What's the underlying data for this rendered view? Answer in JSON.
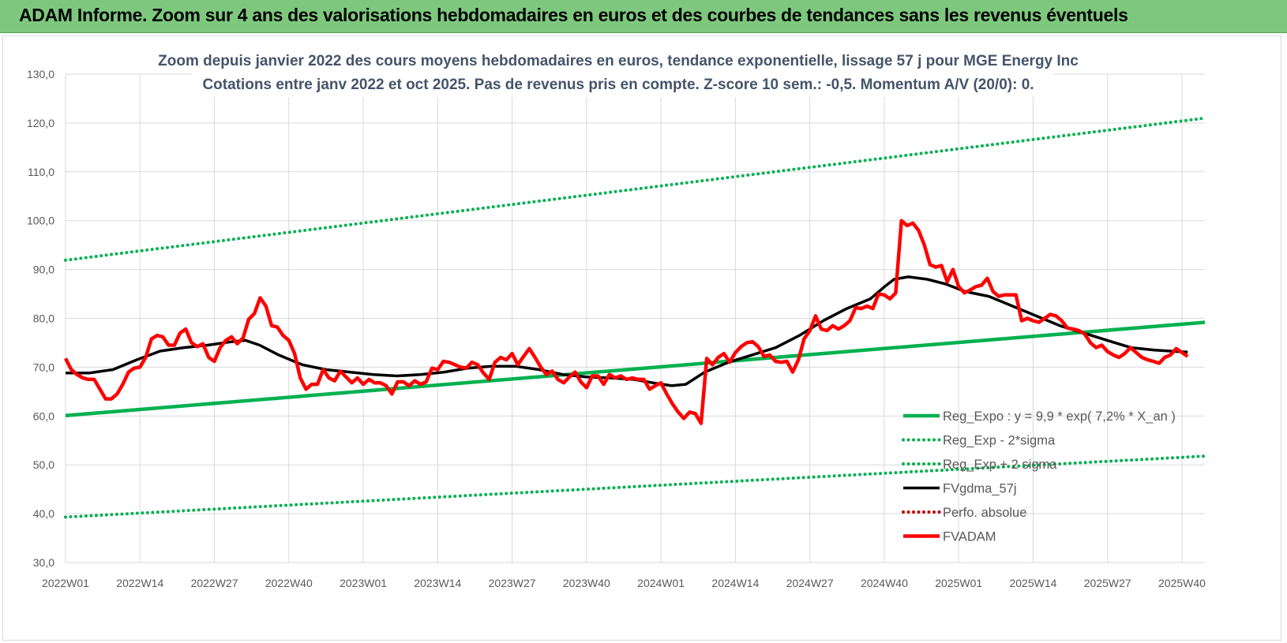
{
  "header": {
    "title": "ADAM Informe. Zoom sur 4 ans des valorisations hebdomadaires en euros et des courbes de tendances sans les revenus éventuels"
  },
  "colors": {
    "header_bg": "#7dc87d",
    "trend": "#00b050",
    "fvgdma": "#000000",
    "fvadam": "#ff0000",
    "perfo": "#c00000"
  },
  "chart_data": {
    "type": "line",
    "title_lines": [
      "Zoom depuis janvier 2022 des cours moyens hebdomadaires en euros, tendance exponentielle, lissage 57 j pour MGE Energy Inc",
      "Cotations entre janv 2022 et oct 2025. Pas de revenus pris en compte. Z-score 10 sem.: -0,5.  Momentum A/V (20/0): 0."
    ],
    "x_ticks": [
      "2022W01",
      "2022W14",
      "2022W27",
      "2022W40",
      "2023W01",
      "2023W14",
      "2023W27",
      "2023W40",
      "2024W01",
      "2024W14",
      "2024W27",
      "2024W40",
      "2025W01",
      "2025W14",
      "2025W27",
      "2025W40"
    ],
    "y_ticks": [
      "30,0",
      "40,0",
      "50,0",
      "60,0",
      "70,0",
      "80,0",
      "90,0",
      "100,0",
      "110,0",
      "120,0",
      "130,0"
    ],
    "ylim": [
      30,
      130
    ],
    "week_count": 200,
    "grid": true,
    "legend_position": "bottom-right",
    "series": [
      {
        "name": "Reg_Expo : y = 9,9 * exp( 7,2% *  X_an )",
        "style": "solid",
        "color": "#00b050",
        "points": [
          [
            0,
            60.1
          ],
          [
            199,
            79.2
          ]
        ]
      },
      {
        "name": "Reg_Exp - 2*sigma",
        "style": "dotted",
        "color": "#00b050",
        "points": [
          [
            0,
            91.9
          ],
          [
            199,
            121.0
          ]
        ]
      },
      {
        "name": "Reg_Exp + 2 sigma",
        "style": "dotted",
        "color": "#00b050",
        "points": [
          [
            0,
            39.3
          ],
          [
            199,
            51.8
          ]
        ]
      },
      {
        "name": "FVgdma_57j",
        "style": "solid",
        "color": "#000000",
        "points": [
          [
            0,
            68.8
          ],
          [
            5,
            68.8
          ],
          [
            10,
            69.5
          ],
          [
            15,
            71.5
          ],
          [
            20,
            73.3
          ],
          [
            25,
            74.0
          ],
          [
            30,
            74.5
          ],
          [
            35,
            75.2
          ],
          [
            38,
            75.5
          ],
          [
            41,
            74.5
          ],
          [
            45,
            72.5
          ],
          [
            50,
            70.5
          ],
          [
            55,
            69.5
          ],
          [
            60,
            69.0
          ],
          [
            65,
            68.5
          ],
          [
            70,
            68.2
          ],
          [
            75,
            68.5
          ],
          [
            80,
            69.0
          ],
          [
            85,
            69.8
          ],
          [
            90,
            70.2
          ],
          [
            95,
            70.2
          ],
          [
            100,
            69.5
          ],
          [
            105,
            68.5
          ],
          [
            110,
            68.0
          ],
          [
            115,
            67.8
          ],
          [
            120,
            67.5
          ],
          [
            124,
            66.8
          ],
          [
            128,
            66.2
          ],
          [
            131,
            66.5
          ],
          [
            135,
            69.0
          ],
          [
            140,
            71.0
          ],
          [
            145,
            72.5
          ],
          [
            150,
            74.0
          ],
          [
            155,
            76.5
          ],
          [
            160,
            79.5
          ],
          [
            165,
            82.0
          ],
          [
            170,
            84.0
          ],
          [
            173,
            86.5
          ],
          [
            175,
            88.0
          ],
          [
            178,
            88.5
          ],
          [
            182,
            88.0
          ],
          [
            186,
            87.0
          ],
          [
            190,
            85.5
          ],
          [
            195,
            84.5
          ],
          [
            200,
            82.5
          ],
          [
            205,
            80.5
          ],
          [
            210,
            78.5
          ],
          [
            215,
            77.0
          ],
          [
            220,
            75.5
          ],
          [
            225,
            74.0
          ],
          [
            230,
            73.5
          ],
          [
            235,
            73.2
          ],
          [
            237,
            73.1
          ]
        ]
      },
      {
        "name": "Perfo. absolue",
        "style": "dotted",
        "color": "#c00000",
        "points": []
      },
      {
        "name": "FVADAM",
        "style": "solid",
        "color": "#ff0000",
        "points": [
          [
            0,
            71.8
          ],
          [
            1,
            69.5
          ],
          [
            2,
            68.5
          ],
          [
            3,
            67.8
          ],
          [
            4,
            67.5
          ],
          [
            5,
            67.5
          ],
          [
            6,
            65.5
          ],
          [
            7,
            63.5
          ],
          [
            8,
            63.5
          ],
          [
            9,
            64.5
          ],
          [
            10,
            66.5
          ],
          [
            11,
            69.0
          ],
          [
            12,
            69.8
          ],
          [
            13,
            70.0
          ],
          [
            14,
            72.0
          ],
          [
            15,
            75.8
          ],
          [
            16,
            76.5
          ],
          [
            17,
            76.2
          ],
          [
            18,
            74.5
          ],
          [
            19,
            74.5
          ],
          [
            20,
            77.0
          ],
          [
            21,
            77.8
          ],
          [
            22,
            75.0
          ],
          [
            23,
            74.2
          ],
          [
            24,
            74.8
          ],
          [
            25,
            72.0
          ],
          [
            26,
            71.2
          ],
          [
            27,
            74.0
          ],
          [
            28,
            75.5
          ],
          [
            29,
            76.2
          ],
          [
            30,
            74.8
          ],
          [
            31,
            76.0
          ],
          [
            32,
            79.8
          ],
          [
            33,
            81.0
          ],
          [
            34,
            84.2
          ],
          [
            35,
            82.5
          ],
          [
            36,
            78.5
          ],
          [
            37,
            78.2
          ],
          [
            38,
            76.5
          ],
          [
            39,
            75.5
          ],
          [
            40,
            72.8
          ],
          [
            41,
            67.8
          ],
          [
            42,
            65.5
          ],
          [
            43,
            66.5
          ],
          [
            44,
            66.5
          ],
          [
            45,
            69.5
          ],
          [
            46,
            67.8
          ],
          [
            47,
            67.2
          ],
          [
            48,
            69.2
          ],
          [
            49,
            68.0
          ],
          [
            50,
            66.8
          ],
          [
            51,
            67.8
          ],
          [
            52,
            66.5
          ],
          [
            53,
            67.5
          ],
          [
            54,
            66.8
          ],
          [
            55,
            66.8
          ],
          [
            56,
            66.2
          ],
          [
            57,
            64.5
          ],
          [
            58,
            67.0
          ],
          [
            59,
            67.0
          ],
          [
            60,
            66.2
          ],
          [
            61,
            67.2
          ],
          [
            62,
            66.5
          ],
          [
            63,
            67.0
          ],
          [
            64,
            69.8
          ],
          [
            65,
            69.5
          ],
          [
            66,
            71.2
          ],
          [
            67,
            71.0
          ],
          [
            68,
            70.5
          ],
          [
            69,
            70.0
          ],
          [
            70,
            69.8
          ],
          [
            71,
            71.0
          ],
          [
            72,
            70.5
          ],
          [
            73,
            68.8
          ],
          [
            74,
            67.5
          ],
          [
            75,
            71.0
          ],
          [
            76,
            72.0
          ],
          [
            77,
            71.5
          ],
          [
            78,
            72.8
          ],
          [
            79,
            70.5
          ],
          [
            80,
            72.2
          ],
          [
            81,
            73.8
          ],
          [
            82,
            72.0
          ],
          [
            83,
            70.0
          ],
          [
            84,
            68.5
          ],
          [
            85,
            69.2
          ],
          [
            86,
            67.5
          ],
          [
            87,
            66.8
          ],
          [
            88,
            68.0
          ],
          [
            89,
            69.0
          ],
          [
            90,
            67.0
          ],
          [
            91,
            65.8
          ],
          [
            92,
            68.2
          ],
          [
            93,
            68.2
          ],
          [
            94,
            66.5
          ],
          [
            95,
            68.5
          ],
          [
            96,
            67.8
          ],
          [
            97,
            68.2
          ],
          [
            98,
            67.5
          ],
          [
            99,
            67.8
          ],
          [
            100,
            67.5
          ],
          [
            101,
            67.5
          ],
          [
            102,
            65.5
          ],
          [
            103,
            66.2
          ],
          [
            104,
            66.8
          ],
          [
            105,
            64.5
          ],
          [
            106,
            62.5
          ],
          [
            107,
            60.8
          ],
          [
            108,
            59.5
          ],
          [
            109,
            60.8
          ],
          [
            110,
            60.5
          ],
          [
            111,
            58.5
          ],
          [
            112,
            71.8
          ],
          [
            113,
            70.5
          ],
          [
            114,
            72.0
          ],
          [
            115,
            72.8
          ],
          [
            116,
            71.0
          ],
          [
            117,
            73.0
          ],
          [
            118,
            74.2
          ],
          [
            119,
            75.0
          ],
          [
            120,
            75.2
          ],
          [
            121,
            74.2
          ],
          [
            122,
            72.2
          ],
          [
            123,
            72.5
          ],
          [
            124,
            71.2
          ],
          [
            125,
            71.0
          ],
          [
            126,
            71.2
          ],
          [
            127,
            69.0
          ],
          [
            128,
            71.5
          ],
          [
            129,
            75.8
          ],
          [
            130,
            77.5
          ],
          [
            131,
            80.5
          ],
          [
            132,
            77.8
          ],
          [
            133,
            77.5
          ],
          [
            134,
            78.5
          ],
          [
            135,
            77.8
          ],
          [
            136,
            78.5
          ],
          [
            137,
            79.5
          ],
          [
            138,
            82.2
          ],
          [
            139,
            82.0
          ],
          [
            140,
            82.5
          ],
          [
            141,
            82.0
          ],
          [
            142,
            85.0
          ],
          [
            143,
            84.8
          ],
          [
            144,
            84.0
          ],
          [
            145,
            85.2
          ],
          [
            146,
            100.0
          ],
          [
            147,
            99.0
          ],
          [
            148,
            99.5
          ],
          [
            149,
            98.0
          ],
          [
            150,
            95.0
          ],
          [
            151,
            91.0
          ],
          [
            152,
            90.5
          ],
          [
            153,
            90.8
          ],
          [
            154,
            87.5
          ],
          [
            155,
            90.0
          ],
          [
            156,
            86.5
          ],
          [
            157,
            85.2
          ],
          [
            158,
            85.8
          ],
          [
            159,
            86.5
          ],
          [
            160,
            86.8
          ],
          [
            161,
            88.2
          ],
          [
            162,
            85.5
          ],
          [
            163,
            84.5
          ],
          [
            164,
            84.8
          ],
          [
            165,
            84.8
          ],
          [
            166,
            84.8
          ],
          [
            167,
            79.5
          ],
          [
            168,
            80.0
          ],
          [
            169,
            79.5
          ],
          [
            170,
            79.2
          ],
          [
            171,
            80.0
          ],
          [
            172,
            80.8
          ],
          [
            173,
            80.5
          ],
          [
            174,
            79.5
          ],
          [
            175,
            78.0
          ],
          [
            176,
            77.8
          ],
          [
            177,
            77.5
          ],
          [
            178,
            76.8
          ],
          [
            179,
            75.0
          ],
          [
            180,
            74.0
          ],
          [
            181,
            74.5
          ],
          [
            182,
            73.2
          ],
          [
            183,
            72.5
          ],
          [
            184,
            72.0
          ],
          [
            185,
            72.8
          ],
          [
            186,
            74.0
          ],
          [
            187,
            73.0
          ],
          [
            188,
            72.0
          ],
          [
            189,
            71.5
          ],
          [
            190,
            71.2
          ],
          [
            191,
            70.8
          ],
          [
            192,
            72.0
          ],
          [
            193,
            72.5
          ],
          [
            194,
            73.8
          ],
          [
            195,
            73.0
          ],
          [
            196,
            72.2
          ]
        ]
      }
    ]
  }
}
